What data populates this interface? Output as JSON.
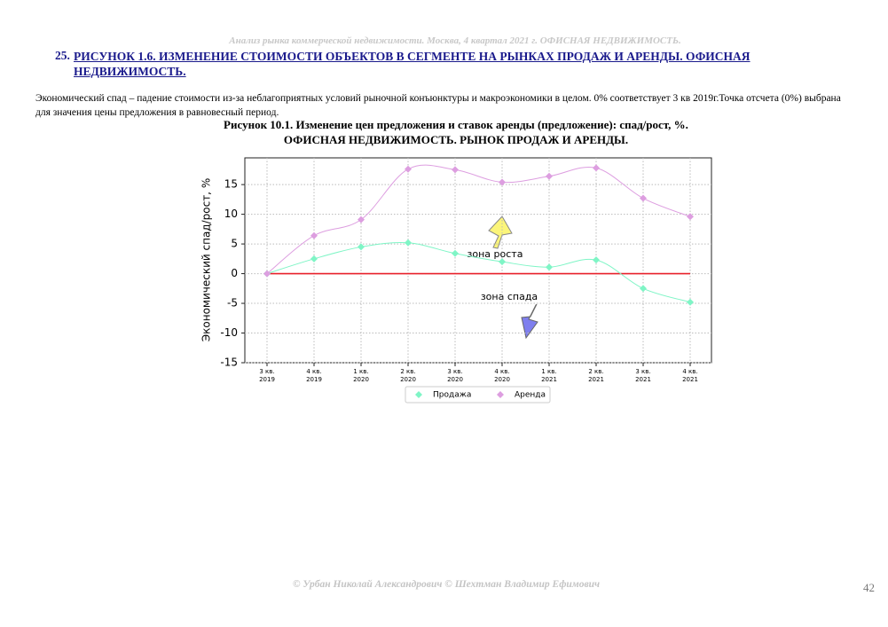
{
  "header": {
    "running_title": "Анализ рынка коммерческой недвижимости. Москва, 4 квартал 2021 г. ОФИСНАЯ НЕДВИЖИМОСТЬ."
  },
  "heading": {
    "number": "25.",
    "text": "РИСУНОК 1.6. ИЗМЕНЕНИЕ СТОИМОСТИ ОБЪЕКТОВ В СЕГМЕНТЕ НА РЫНКАХ ПРОДАЖ И АРЕНДЫ. ОФИСНАЯ НЕДВИЖИМОСТЬ."
  },
  "paragraph": "Экономический спад – падение стоимости из-за неблагоприятных условий рыночной конъюнктуры и макроэкономики в целом. 0% соответствует 3 кв 2019г.Точка отсчета (0%) выбрана для значения цены предложения в равновесный период.",
  "caption": [
    "Рисунок 10.1. Изменение цен предложения и ставок аренды (предложение): спад/рост, %.",
    "ОФИСНАЯ НЕДВИЖИМОСТЬ. РЫНОК ПРОДАЖ И АРЕНДЫ."
  ],
  "chart_data": {
    "type": "line",
    "y_label": "Экономический спад/рост, %",
    "categories": [
      "3 кв.\n2019",
      "4 кв.\n2019",
      "1 кв.\n2020",
      "2 кв.\n2020",
      "3 кв.\n2020",
      "4 кв.\n2020",
      "1 кв.\n2021",
      "2 кв.\n2021",
      "3 кв.\n2021",
      "4 кв.\n2021"
    ],
    "series": [
      {
        "name": "Продажа",
        "color": "#7ff5c6",
        "values": [
          0,
          2.5,
          4.5,
          5.2,
          3.4,
          2.0,
          1.1,
          2.3,
          -2.5,
          -4.8
        ]
      },
      {
        "name": "Аренда",
        "color": "#dd9ee0",
        "values": [
          0,
          6.4,
          9.1,
          17.6,
          17.5,
          15.4,
          16.4,
          17.8,
          12.7,
          9.6
        ]
      }
    ],
    "reference_line": {
      "value": 0,
      "color": "#e8202a"
    },
    "ylim": [
      -15,
      19.5
    ],
    "yticks": [
      -15,
      -10,
      -5,
      0,
      5,
      10,
      15
    ],
    "grid": true,
    "legend": "bottom",
    "annotations": [
      "зона роста",
      "зона спада"
    ]
  },
  "footer": {
    "copyright": "© Урбан Николай Александрович © Шехтман Владимир Ефимович",
    "page": "42"
  }
}
